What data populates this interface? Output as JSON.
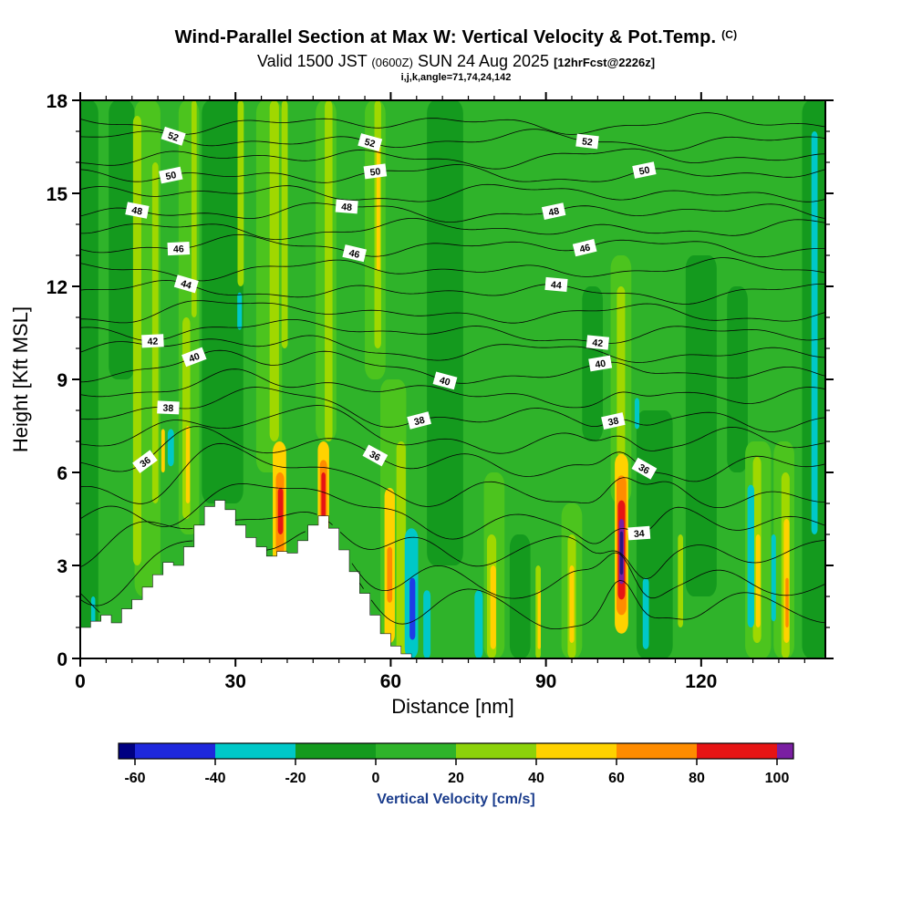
{
  "header": {
    "title_main": "Wind-Parallel Section at Max W: Vertical Velocity & Pot.Temp.",
    "title_unit": "(C)",
    "valid_prefix": "Valid 1500 JST",
    "valid_small1": "(0600Z)",
    "valid_date": "SUN 24 Aug 2025",
    "valid_small2": "[12hrFcst@2226z]",
    "model_info": "i,j,k,angle=71,74,24,142"
  },
  "chart_data": {
    "type": "heatmap",
    "subtype": "vertical-cross-section-filled-contour",
    "shaded_variable": "Vertical Velocity [cm/s]",
    "contour_variable": "Pot.Temp. (C)",
    "xlabel": "Distance [nm]",
    "ylabel": "Height [Kft MSL]",
    "x_range_nm": [
      0,
      144
    ],
    "y_range_kft": [
      0,
      18
    ],
    "x_ticks": [
      0,
      30,
      60,
      90,
      120
    ],
    "x_minor_step": 5,
    "y_ticks": [
      0,
      3,
      6,
      9,
      12,
      15,
      18
    ],
    "y_minor_step": 1,
    "colorbar": {
      "label": "Vertical Velocity [cm/s]",
      "label_color": "#1a3c8c",
      "tick_levels": [
        -60,
        -40,
        -20,
        0,
        20,
        40,
        60,
        80,
        100
      ],
      "band_colors": [
        "#000082",
        "#1e28dc",
        "#00c8c8",
        "#149a1e",
        "#2fb32a",
        "#8cd20a",
        "#ffd200",
        "#ff8c00",
        "#e61414",
        "#7a1fa2"
      ]
    },
    "palette": {
      "bg": "#2fb32a",
      "dg": "#149a1e",
      "lg": "#4cc41e",
      "yg": "#a0d800",
      "y": "#ffd200",
      "o": "#ff8c00",
      "r": "#e61414",
      "p": "#7a1fa2",
      "n": "#2a1680",
      "c": "#00c8c8",
      "b": "#1e3ce6"
    },
    "shaded_field": {
      "background_band_cms": "0 to 20",
      "features": [
        {
          "x": 1.5,
          "w": 4,
          "y0": 0,
          "y1": 18,
          "c": "dg"
        },
        {
          "x": 8,
          "w": 5,
          "y0": 9,
          "y1": 18,
          "c": "dg"
        },
        {
          "x": 27.5,
          "w": 8,
          "y0": 5,
          "y1": 18,
          "c": "dg"
        },
        {
          "x": 70.5,
          "w": 7,
          "y0": 3,
          "y1": 18,
          "c": "dg"
        },
        {
          "x": 85,
          "w": 4,
          "y0": 0,
          "y1": 4,
          "c": "dg"
        },
        {
          "x": 99,
          "w": 4,
          "y0": 7,
          "y1": 12,
          "c": "dg"
        },
        {
          "x": 111,
          "w": 7,
          "y0": 0,
          "y1": 8,
          "c": "dg"
        },
        {
          "x": 120,
          "w": 6,
          "y0": 2,
          "y1": 13,
          "c": "dg"
        },
        {
          "x": 127,
          "w": 4,
          "y0": 6,
          "y1": 12,
          "c": "dg"
        },
        {
          "x": 142,
          "w": 5,
          "y0": 0,
          "y1": 18,
          "c": "dg"
        },
        {
          "x": 13,
          "w": 5,
          "y0": 2,
          "y1": 18,
          "c": "lg"
        },
        {
          "x": 21,
          "w": 4,
          "y0": 4,
          "y1": 18,
          "c": "lg"
        },
        {
          "x": 36.5,
          "w": 5,
          "y0": 6,
          "y1": 18,
          "c": "lg"
        },
        {
          "x": 47.5,
          "w": 4,
          "y0": 7,
          "y1": 18,
          "c": "lg"
        },
        {
          "x": 57,
          "w": 4,
          "y0": 9,
          "y1": 18,
          "c": "lg"
        },
        {
          "x": 60.5,
          "w": 5,
          "y0": 0,
          "y1": 9,
          "c": "lg"
        },
        {
          "x": 80,
          "w": 4,
          "y0": 0,
          "y1": 6,
          "c": "lg"
        },
        {
          "x": 95,
          "w": 4,
          "y0": 0,
          "y1": 5,
          "c": "lg"
        },
        {
          "x": 104.5,
          "w": 4,
          "y0": 5,
          "y1": 13,
          "c": "lg"
        },
        {
          "x": 131,
          "w": 5,
          "y0": 0,
          "y1": 7,
          "c": "lg"
        },
        {
          "x": 136,
          "w": 4,
          "y0": 0,
          "y1": 7,
          "c": "lg"
        },
        {
          "x": 11,
          "w": 1.6,
          "y0": 3,
          "y1": 17.5,
          "c": "yg"
        },
        {
          "x": 14.5,
          "w": 1.2,
          "y0": 5,
          "y1": 16,
          "c": "yg"
        },
        {
          "x": 20.5,
          "w": 1.5,
          "y0": 4.5,
          "y1": 11,
          "c": "yg"
        },
        {
          "x": 22,
          "w": 1,
          "y0": 11,
          "y1": 18,
          "c": "yg"
        },
        {
          "x": 31,
          "w": 1.2,
          "y0": 12,
          "y1": 18,
          "c": "yg"
        },
        {
          "x": 37.5,
          "w": 1.8,
          "y0": 7,
          "y1": 18,
          "c": "yg"
        },
        {
          "x": 39.5,
          "w": 1.2,
          "y0": 10,
          "y1": 18,
          "c": "yg"
        },
        {
          "x": 48,
          "w": 1.5,
          "y0": 7,
          "y1": 18,
          "c": "yg"
        },
        {
          "x": 57.5,
          "w": 1.3,
          "y0": 10,
          "y1": 18,
          "c": "yg"
        },
        {
          "x": 62,
          "w": 1.8,
          "y0": 0,
          "y1": 7,
          "c": "yg"
        },
        {
          "x": 79.5,
          "w": 1.8,
          "y0": 0,
          "y1": 4,
          "c": "yg"
        },
        {
          "x": 88.5,
          "w": 1,
          "y0": 0,
          "y1": 3,
          "c": "yg"
        },
        {
          "x": 95,
          "w": 1.6,
          "y0": 0,
          "y1": 4,
          "c": "yg"
        },
        {
          "x": 104.5,
          "w": 1.6,
          "y0": 6.5,
          "y1": 12,
          "c": "yg"
        },
        {
          "x": 116,
          "w": 1,
          "y0": 1,
          "y1": 4,
          "c": "yg"
        },
        {
          "x": 130.8,
          "w": 1.6,
          "y0": 0.5,
          "y1": 6.5,
          "c": "yg"
        },
        {
          "x": 136.3,
          "w": 1.6,
          "y0": 0,
          "y1": 6,
          "c": "yg"
        },
        {
          "x": 44,
          "w": 1.6,
          "y0": 0.5,
          "y1": 3.2,
          "c": "c"
        },
        {
          "x": 55.5,
          "w": 1.2,
          "y0": 0,
          "y1": 1.6,
          "c": "c"
        },
        {
          "x": 64,
          "w": 2.6,
          "y0": 0,
          "y1": 4.2,
          "c": "c"
        },
        {
          "x": 67,
          "w": 1.4,
          "y0": 0,
          "y1": 2.2,
          "c": "c"
        },
        {
          "x": 77,
          "w": 1.6,
          "y0": 0,
          "y1": 2.2,
          "c": "c"
        },
        {
          "x": 109.3,
          "w": 1.2,
          "y0": 0.3,
          "y1": 2.6,
          "c": "c"
        },
        {
          "x": 129.6,
          "w": 1.3,
          "y0": 1,
          "y1": 5.6,
          "c": "c"
        },
        {
          "x": 134,
          "w": 0.9,
          "y0": 1.2,
          "y1": 4,
          "c": "c"
        },
        {
          "x": 141.9,
          "w": 1.2,
          "y0": 4,
          "y1": 17,
          "c": "c"
        },
        {
          "x": 17.5,
          "w": 1.2,
          "y0": 6.2,
          "y1": 7.4,
          "c": "c"
        },
        {
          "x": 30.8,
          "w": 0.9,
          "y0": 10.6,
          "y1": 11.8,
          "c": "c"
        },
        {
          "x": 107.6,
          "w": 0.9,
          "y0": 7.4,
          "y1": 8.4,
          "c": "c"
        },
        {
          "x": 2.5,
          "w": 0.8,
          "y0": 1.1,
          "y1": 2,
          "c": "c"
        },
        {
          "x": 64.2,
          "w": 1.1,
          "y0": 0.6,
          "y1": 2.6,
          "c": "b"
        },
        {
          "x": 38.5,
          "w": 2.6,
          "y0": 2,
          "y1": 7,
          "c": "y"
        },
        {
          "x": 47,
          "w": 2.2,
          "y0": 2.8,
          "y1": 7,
          "c": "y"
        },
        {
          "x": 59.8,
          "w": 2,
          "y0": 0.5,
          "y1": 5.5,
          "c": "y"
        },
        {
          "x": 104.6,
          "w": 2.6,
          "y0": 0.8,
          "y1": 6.6,
          "c": "y"
        },
        {
          "x": 79.8,
          "w": 1.1,
          "y0": 0.3,
          "y1": 3,
          "c": "y"
        },
        {
          "x": 95,
          "w": 0.9,
          "y0": 0.5,
          "y1": 3,
          "c": "y"
        },
        {
          "x": 131,
          "w": 0.9,
          "y0": 1,
          "y1": 4,
          "c": "y"
        },
        {
          "x": 136.5,
          "w": 1.1,
          "y0": 0.5,
          "y1": 4.5,
          "c": "y"
        },
        {
          "x": 57.6,
          "w": 0.7,
          "y0": 12.5,
          "y1": 16.5,
          "c": "y"
        },
        {
          "x": 20.8,
          "w": 0.8,
          "y0": 5,
          "y1": 7.5,
          "c": "y"
        },
        {
          "x": 16,
          "w": 0.7,
          "y0": 6,
          "y1": 7.4,
          "c": "y"
        },
        {
          "x": 88.7,
          "w": 0.6,
          "y0": 0.3,
          "y1": 2.2,
          "c": "y"
        },
        {
          "x": 38.6,
          "w": 1.6,
          "y0": 3.3,
          "y1": 6,
          "c": "o"
        },
        {
          "x": 47,
          "w": 1.4,
          "y0": 3.5,
          "y1": 6.4,
          "c": "o"
        },
        {
          "x": 59.8,
          "w": 1,
          "y0": 1.8,
          "y1": 3.6,
          "c": "o"
        },
        {
          "x": 104.6,
          "w": 1.9,
          "y0": 1.4,
          "y1": 5.9,
          "c": "o"
        },
        {
          "x": 136.6,
          "w": 0.6,
          "y0": 1,
          "y1": 2.6,
          "c": "o"
        },
        {
          "x": 38.7,
          "w": 1,
          "y0": 4,
          "y1": 5.5,
          "c": "r"
        },
        {
          "x": 47,
          "w": 0.8,
          "y0": 4.4,
          "y1": 6,
          "c": "r"
        },
        {
          "x": 104.6,
          "w": 1.4,
          "y0": 1.9,
          "y1": 5.1,
          "c": "r"
        },
        {
          "x": 104.6,
          "w": 0.95,
          "y0": 2.4,
          "y1": 4.5,
          "c": "p"
        },
        {
          "x": 104.6,
          "w": 0.6,
          "y0": 2.7,
          "y1": 4.1,
          "c": "n"
        }
      ]
    },
    "isentropes": {
      "units": "C",
      "contour_interval": 1,
      "labeled_interval": 2,
      "base_heights_kft": {
        "31": 1.6,
        "32": 2.5,
        "33": 3.4,
        "34": 4.3,
        "35": 5.3,
        "36": 6.2,
        "37": 7.0,
        "38": 7.7,
        "39": 8.45,
        "40": 9.2,
        "41": 9.85,
        "42": 10.45,
        "43": 11.1,
        "44": 11.8,
        "45": 12.55,
        "46": 13.3,
        "47": 13.85,
        "48": 14.4,
        "49": 15.0,
        "50": 15.6,
        "51": 16.15,
        "52": 16.7,
        "53": 17.25
      },
      "labels": [
        {
          "v": 52,
          "x": 18
        },
        {
          "v": 52,
          "x": 56
        },
        {
          "v": 52,
          "x": 98
        },
        {
          "v": 50,
          "x": 17.5
        },
        {
          "v": 50,
          "x": 57
        },
        {
          "v": 50,
          "x": 109
        },
        {
          "v": 48,
          "x": 11
        },
        {
          "v": 48,
          "x": 51.5
        },
        {
          "v": 48,
          "x": 91.5
        },
        {
          "v": 46,
          "x": 19
        },
        {
          "v": 46,
          "x": 53
        },
        {
          "v": 46,
          "x": 97.5
        },
        {
          "v": 44,
          "x": 20.5
        },
        {
          "v": 44,
          "x": 92
        },
        {
          "v": 42,
          "x": 14
        },
        {
          "v": 42,
          "x": 100
        },
        {
          "v": 40,
          "x": 22
        },
        {
          "v": 40,
          "x": 70.5
        },
        {
          "v": 40,
          "x": 100.5
        },
        {
          "v": 38,
          "x": 17
        },
        {
          "v": 38,
          "x": 65.5
        },
        {
          "v": 38,
          "x": 103
        },
        {
          "v": 36,
          "x": 12.5
        },
        {
          "v": 36,
          "x": 57
        },
        {
          "v": 36,
          "x": 109
        },
        {
          "v": 34,
          "x": 108
        }
      ]
    },
    "terrain_profile": {
      "step_nm": 2,
      "heights_kft": [
        1.0,
        1.2,
        1.4,
        1.15,
        1.6,
        1.9,
        2.3,
        2.7,
        3.1,
        3.0,
        3.6,
        4.3,
        4.9,
        5.1,
        4.8,
        4.3,
        3.9,
        3.6,
        3.3,
        3.45,
        3.4,
        3.8,
        4.3,
        4.6,
        4.2,
        3.5,
        2.8,
        2.1,
        1.4,
        0.8,
        0.4,
        0.15
      ]
    }
  }
}
